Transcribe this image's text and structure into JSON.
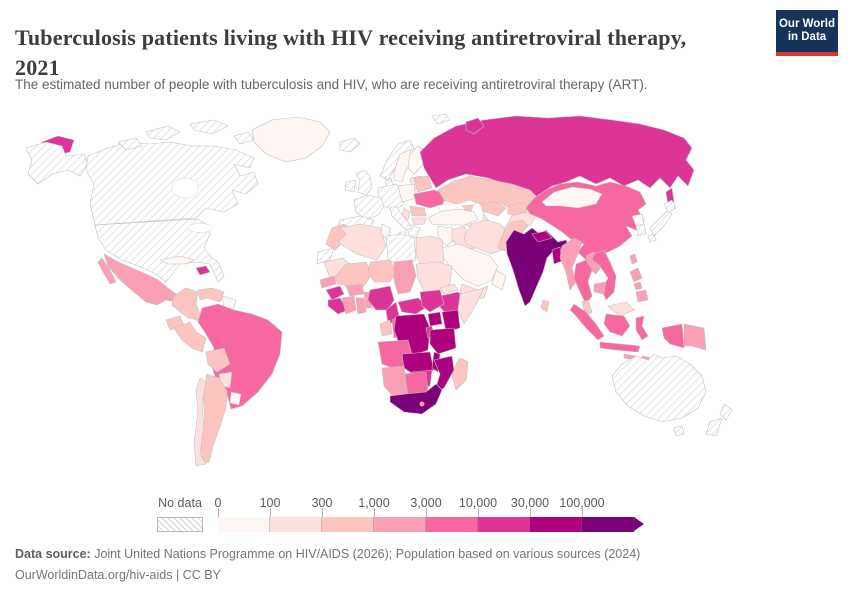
{
  "header": {
    "title_line1": "Tuberculosis patients living with HIV receiving antiretroviral therapy,",
    "title_line2": "2021",
    "subtitle": "The estimated number of people with tuberculosis and HIV, who are receiving antiretroviral therapy (ART)."
  },
  "logo": {
    "line1": "Our World",
    "line2": "in Data",
    "bg_color": "#15335b",
    "accent_color": "#dc352c"
  },
  "legend": {
    "no_data_label": "No data",
    "ticks": [
      "0",
      "100",
      "300",
      "1,000",
      "3,000",
      "10,000",
      "30,000",
      "100,000"
    ]
  },
  "footer": {
    "source_label": "Data source:",
    "source_text": " Joint United Nations Programme on HIV/AIDS (2026); Population based on various sources (2024)",
    "attribution": "OurWorldinData.org/hiv-aids | CC BY"
  },
  "chart_data": {
    "type": "choropleth-map",
    "title": "Tuberculosis patients living with HIV receiving antiretroviral therapy, 2021",
    "unit": "people receiving ART",
    "legend_position": "bottom",
    "palette": {
      "No data": "hatch",
      "0-100": "#fff7f3",
      "100-300": "#fde0dd",
      "300-1,000": "#fcc5c0",
      "1,000-3,000": "#fa9fb5",
      "3,000-10,000": "#f768a1",
      "10,000-30,000": "#dd3497",
      "30,000-100,000": "#ae017e",
      "100,000+": "#7a0177"
    },
    "regions": [
      {
        "id": "united-states",
        "name": "United States",
        "bucket": "No data"
      },
      {
        "id": "canada",
        "name": "Canada",
        "bucket": "No data"
      },
      {
        "id": "greenland",
        "name": "Greenland",
        "bucket": "0-100"
      },
      {
        "id": "iceland",
        "name": "Iceland",
        "bucket": "No data"
      },
      {
        "id": "mexico",
        "name": "Mexico",
        "bucket": "1,000-3,000"
      },
      {
        "id": "central-america",
        "name": "Central America",
        "bucket": "100-300"
      },
      {
        "id": "cuba",
        "name": "Cuba",
        "bucket": "0-100"
      },
      {
        "id": "haiti-dominican-republic",
        "name": "Haiti & Dominican Republic",
        "bucket": "10,000-30,000"
      },
      {
        "id": "colombia",
        "name": "Colombia",
        "bucket": "300-1,000"
      },
      {
        "id": "venezuela",
        "name": "Venezuela",
        "bucket": "300-1,000"
      },
      {
        "id": "guyana-suriname",
        "name": "Guyana & Suriname",
        "bucket": "0-100"
      },
      {
        "id": "ecuador",
        "name": "Ecuador",
        "bucket": "300-1,000"
      },
      {
        "id": "peru",
        "name": "Peru",
        "bucket": "300-1,000"
      },
      {
        "id": "brazil",
        "name": "Brazil",
        "bucket": "3,000-10,000"
      },
      {
        "id": "bolivia",
        "name": "Bolivia",
        "bucket": "300-1,000"
      },
      {
        "id": "paraguay",
        "name": "Paraguay",
        "bucket": "100-300"
      },
      {
        "id": "uruguay",
        "name": "Uruguay",
        "bucket": "0-100"
      },
      {
        "id": "argentina",
        "name": "Argentina",
        "bucket": "300-1,000"
      },
      {
        "id": "chile",
        "name": "Chile",
        "bucket": "100-300"
      },
      {
        "id": "united-kingdom",
        "name": "United Kingdom",
        "bucket": "No data"
      },
      {
        "id": "ireland",
        "name": "Ireland",
        "bucket": "No data"
      },
      {
        "id": "france",
        "name": "France",
        "bucket": "No data"
      },
      {
        "id": "spain-portugal",
        "name": "Spain & Portugal",
        "bucket": "No data"
      },
      {
        "id": "germany-central-europe",
        "name": "Central Europe",
        "bucket": "No data"
      },
      {
        "id": "denmark",
        "name": "Denmark",
        "bucket": "No data"
      },
      {
        "id": "italy",
        "name": "Italy",
        "bucket": "No data"
      },
      {
        "id": "greece",
        "name": "Greece",
        "bucket": "No data"
      },
      {
        "id": "norway",
        "name": "Norway",
        "bucket": "No data"
      },
      {
        "id": "svalbard",
        "name": "Svalbard",
        "bucket": "No data"
      },
      {
        "id": "sweden",
        "name": "Sweden",
        "bucket": "0-100"
      },
      {
        "id": "finland",
        "name": "Finland",
        "bucket": "0-100"
      },
      {
        "id": "poland",
        "name": "Poland",
        "bucket": "0-100"
      },
      {
        "id": "baltic-states",
        "name": "Baltic states",
        "bucket": "100-300"
      },
      {
        "id": "belarus",
        "name": "Belarus",
        "bucket": "300-1,000"
      },
      {
        "id": "ukraine",
        "name": "Ukraine",
        "bucket": "3,000-10,000"
      },
      {
        "id": "romania",
        "name": "Romania",
        "bucket": "300-1,000"
      },
      {
        "id": "bulgaria",
        "name": "Bulgaria",
        "bucket": "100-300"
      },
      {
        "id": "serbia",
        "name": "Serbia",
        "bucket": "100-300"
      },
      {
        "id": "turkey",
        "name": "Turkey",
        "bucket": "0-100"
      },
      {
        "id": "russia",
        "name": "Russia",
        "bucket": "10,000-30,000"
      },
      {
        "id": "kazakhstan",
        "name": "Kazakhstan",
        "bucket": "300-1,000"
      },
      {
        "id": "uzbekistan",
        "name": "Uzbekistan",
        "bucket": "300-1,000"
      },
      {
        "id": "turkmenistan",
        "name": "Turkmenistan",
        "bucket": "100-300"
      },
      {
        "id": "kyrgyzstan-tajikistan",
        "name": "Kyrgyzstan & Tajikistan",
        "bucket": "300-1,000"
      },
      {
        "id": "caucasus",
        "name": "Caucasus",
        "bucket": "300-1,000"
      },
      {
        "id": "iran",
        "name": "Iran",
        "bucket": "100-300"
      },
      {
        "id": "iraq",
        "name": "Iraq",
        "bucket": "100-300"
      },
      {
        "id": "syria-jordan",
        "name": "Syria & Jordan",
        "bucket": "0-100"
      },
      {
        "id": "saudi-arabia",
        "name": "Saudi Arabia",
        "bucket": "0-100"
      },
      {
        "id": "yemen",
        "name": "Yemen",
        "bucket": "100-300"
      },
      {
        "id": "oman",
        "name": "Oman",
        "bucket": "0-100"
      },
      {
        "id": "afghanistan",
        "name": "Afghanistan",
        "bucket": "100-300"
      },
      {
        "id": "pakistan",
        "name": "Pakistan",
        "bucket": "300-1,000"
      },
      {
        "id": "india",
        "name": "India",
        "bucket": "100,000+"
      },
      {
        "id": "nepal",
        "name": "Nepal",
        "bucket": "30,000-100,000"
      },
      {
        "id": "bangladesh",
        "name": "Bangladesh",
        "bucket": "30,000-100,000"
      },
      {
        "id": "sri-lanka",
        "name": "Sri Lanka",
        "bucket": "300-1,000"
      },
      {
        "id": "china",
        "name": "China",
        "bucket": "3,000-10,000"
      },
      {
        "id": "mongolia",
        "name": "Mongolia",
        "bucket": "0-100"
      },
      {
        "id": "north-korea",
        "name": "North Korea",
        "bucket": "0-100"
      },
      {
        "id": "south-korea",
        "name": "South Korea",
        "bucket": "No data"
      },
      {
        "id": "japan",
        "name": "Japan",
        "bucket": "No data"
      },
      {
        "id": "taiwan",
        "name": "Taiwan",
        "bucket": "1,000-3,000"
      },
      {
        "id": "myanmar",
        "name": "Myanmar",
        "bucket": "1,000-3,000"
      },
      {
        "id": "thailand",
        "name": "Thailand",
        "bucket": "3,000-10,000"
      },
      {
        "id": "laos",
        "name": "Laos",
        "bucket": "1,000-3,000"
      },
      {
        "id": "vietnam",
        "name": "Vietnam",
        "bucket": "3,000-10,000"
      },
      {
        "id": "cambodia",
        "name": "Cambodia",
        "bucket": "1,000-3,000"
      },
      {
        "id": "malaysia",
        "name": "Malaysia",
        "bucket": "300-1,000"
      },
      {
        "id": "malaysia-borneo",
        "name": "Malaysia (Borneo)",
        "bucket": "100-300"
      },
      {
        "id": "indonesia",
        "name": "Indonesia",
        "bucket": "3,000-10,000"
      },
      {
        "id": "lesser-sunda",
        "name": "Lesser Sunda Islands",
        "bucket": "1,000-3,000"
      },
      {
        "id": "philippines",
        "name": "Philippines",
        "bucket": "1,000-3,000"
      },
      {
        "id": "papua-new-guinea",
        "name": "Papua New Guinea",
        "bucket": "1,000-3,000"
      },
      {
        "id": "australia",
        "name": "Australia",
        "bucket": "No data"
      },
      {
        "id": "new-zealand",
        "name": "New Zealand",
        "bucket": "No data"
      },
      {
        "id": "morocco",
        "name": "Morocco",
        "bucket": "300-1,000"
      },
      {
        "id": "western-sahara",
        "name": "Western Sahara",
        "bucket": "No data"
      },
      {
        "id": "algeria",
        "name": "Algeria",
        "bucket": "100-300"
      },
      {
        "id": "tunisia",
        "name": "Tunisia",
        "bucket": "0-100"
      },
      {
        "id": "libya",
        "name": "Libya",
        "bucket": "No data"
      },
      {
        "id": "egypt",
        "name": "Egypt",
        "bucket": "100-300"
      },
      {
        "id": "mauritania",
        "name": "Mauritania",
        "bucket": "100-300"
      },
      {
        "id": "mali",
        "name": "Mali",
        "bucket": "300-1,000"
      },
      {
        "id": "niger",
        "name": "Niger",
        "bucket": "300-1,000"
      },
      {
        "id": "chad",
        "name": "Chad",
        "bucket": "1,000-3,000"
      },
      {
        "id": "sudan",
        "name": "Sudan",
        "bucket": "100-300"
      },
      {
        "id": "eritrea",
        "name": "Eritrea",
        "bucket": "100-300"
      },
      {
        "id": "ethiopia",
        "name": "Ethiopia",
        "bucket": "10,000-30,000"
      },
      {
        "id": "somalia",
        "name": "Somalia",
        "bucket": "100-300"
      },
      {
        "id": "senegal",
        "name": "Senegal",
        "bucket": "1,000-3,000"
      },
      {
        "id": "guinea",
        "name": "Guinea",
        "bucket": "10,000-30,000"
      },
      {
        "id": "sierra-leone-liberia",
        "name": "Sierra Leone & Liberia",
        "bucket": "10,000-30,000"
      },
      {
        "id": "ivory-coast",
        "name": "Cote d'Ivoire",
        "bucket": "1,000-3,000"
      },
      {
        "id": "ghana",
        "name": "Ghana",
        "bucket": "1,000-3,000"
      },
      {
        "id": "burkina-faso",
        "name": "Burkina Faso",
        "bucket": "1,000-3,000"
      },
      {
        "id": "benin-togo",
        "name": "Benin & Togo",
        "bucket": "1,000-3,000"
      },
      {
        "id": "nigeria",
        "name": "Nigeria",
        "bucket": "10,000-30,000"
      },
      {
        "id": "cameroon",
        "name": "Cameroon",
        "bucket": "10,000-30,000"
      },
      {
        "id": "central-african-republic",
        "name": "Central African Republic",
        "bucket": "10,000-30,000"
      },
      {
        "id": "south-sudan",
        "name": "South Sudan",
        "bucket": "10,000-30,000"
      },
      {
        "id": "gabon",
        "name": "Gabon",
        "bucket": "300-1,000"
      },
      {
        "id": "congo",
        "name": "Congo",
        "bucket": "3,000-10,000"
      },
      {
        "id": "uganda",
        "name": "Uganda",
        "bucket": "30,000-100,000"
      },
      {
        "id": "kenya",
        "name": "Kenya",
        "bucket": "30,000-100,000"
      },
      {
        "id": "rwanda-burundi",
        "name": "Rwanda & Burundi",
        "bucket": "10,000-30,000"
      },
      {
        "id": "democratic-republic-of-congo",
        "name": "Democratic Republic of Congo",
        "bucket": "30,000-100,000"
      },
      {
        "id": "tanzania",
        "name": "Tanzania",
        "bucket": "30,000-100,000"
      },
      {
        "id": "angola",
        "name": "Angola",
        "bucket": "3,000-10,000"
      },
      {
        "id": "zambia",
        "name": "Zambia",
        "bucket": "30,000-100,000"
      },
      {
        "id": "malawi",
        "name": "Malawi",
        "bucket": "30,000-100,000"
      },
      {
        "id": "mozambique",
        "name": "Mozambique",
        "bucket": "30,000-100,000"
      },
      {
        "id": "zimbabwe",
        "name": "Zimbabwe",
        "bucket": "10,000-30,000"
      },
      {
        "id": "botswana",
        "name": "Botswana",
        "bucket": "3,000-10,000"
      },
      {
        "id": "namibia",
        "name": "Namibia",
        "bucket": "1,000-3,000"
      },
      {
        "id": "lesotho",
        "name": "Lesotho",
        "bucket": "1,000-3,000"
      },
      {
        "id": "south-africa",
        "name": "South Africa",
        "bucket": "100,000+"
      },
      {
        "id": "madagascar",
        "name": "Madagascar",
        "bucket": "300-1,000"
      }
    ]
  }
}
